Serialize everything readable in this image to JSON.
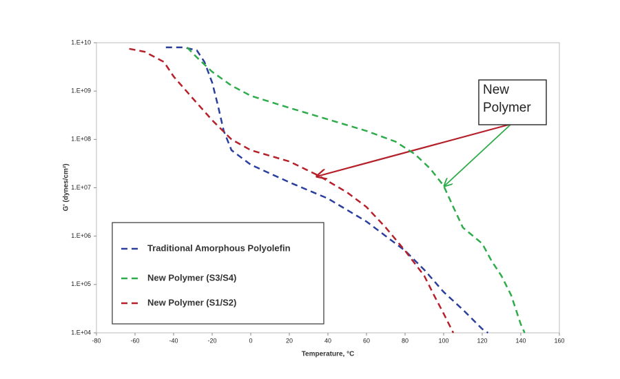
{
  "chart_data": {
    "type": "line",
    "xlabel": "Temperature, °C",
    "ylabel": "G' (dynes/cm²)",
    "annotation": "New Polymer",
    "log_y": true,
    "grid": false,
    "legend": "lower left",
    "xlim": [
      -80,
      160
    ],
    "xticks": [
      -80,
      -60,
      -40,
      -20,
      0,
      20,
      40,
      60,
      80,
      100,
      120,
      140,
      160
    ],
    "ylim": [
      10000,
      10000000000
    ],
    "yticks": [
      {
        "value": 10000,
        "label": "1.E+04"
      },
      {
        "value": 100000,
        "label": "1.E+05"
      },
      {
        "value": 1000000,
        "label": "1.E+06"
      },
      {
        "value": 10000000,
        "label": "1.E+07"
      },
      {
        "value": 100000000,
        "label": "1.E+08"
      },
      {
        "value": 1000000000,
        "label": "1.E+09"
      },
      {
        "value": 10000000000,
        "label": "1.E+10"
      }
    ],
    "series": [
      {
        "name": "Traditional Amorphous Polyolefin",
        "color": "#2a3f9d",
        "x": [
          -44,
          -35,
          -28,
          -24,
          -20,
          -17,
          -14,
          -10,
          0,
          20,
          40,
          60,
          80,
          90,
          100,
          110,
          120,
          123
        ],
        "values": [
          8000000000,
          8000000000,
          7000000000,
          4000000000,
          1500000000,
          500000000,
          150000000,
          60000000,
          30000000,
          13000000,
          6000000,
          2000000,
          500000,
          200000,
          70000,
          30000,
          12000,
          10000
        ]
      },
      {
        "name": "New Polymer (S3/S4)",
        "color": "#2eab4a",
        "x": [
          -33,
          -28,
          -20,
          -10,
          0,
          20,
          40,
          60,
          75,
          85,
          93,
          100,
          105,
          110,
          120,
          125,
          130,
          135,
          140,
          142
        ],
        "values": [
          8000000000,
          5000000000,
          2500000000,
          1300000000,
          800000000,
          450000000,
          260000000,
          150000000,
          90000000,
          50000000,
          25000000,
          11000000,
          4000000,
          1500000,
          700000,
          300000,
          150000,
          60000,
          15000,
          10000
        ]
      },
      {
        "name": "New Polymer (S1/S2)",
        "color": "#b5202a",
        "x": [
          -63,
          -55,
          -45,
          -40,
          -30,
          -20,
          -10,
          0,
          20,
          35,
          50,
          60,
          70,
          80,
          90,
          95,
          100,
          105
        ],
        "values": [
          7500000000,
          6500000000,
          4000000000,
          2000000000,
          700000000,
          250000000,
          100000000,
          60000000,
          35000000,
          18000000,
          8000000,
          4000000,
          1500000,
          500000,
          150000,
          60000,
          25000,
          10000
        ]
      }
    ]
  }
}
